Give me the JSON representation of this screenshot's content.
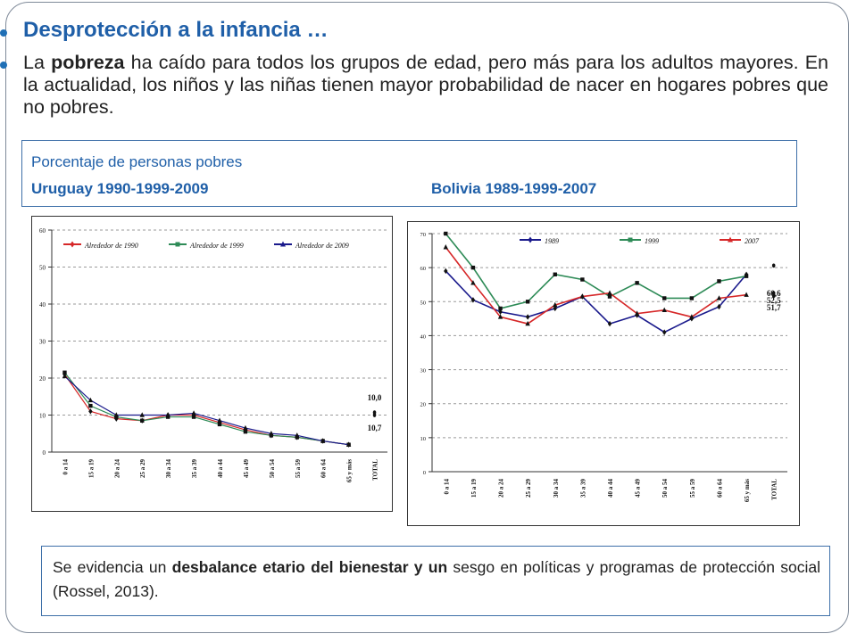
{
  "slide": {
    "title": "Desprotección a la infancia …",
    "body_prefix": "La ",
    "body_bold": "pobreza",
    "body_rest": " ha caído para todos los grupos de edad, pero más para los adultos mayores. En la actualidad, los niños y las niñas tienen mayor probabilidad de nacer en hogares pobres  que no pobres.",
    "caption_line1": "Porcentaje de personas pobres",
    "caption_uruguay": "Uruguay 1990-1999-2009",
    "caption_bolivia": "Bolivia 1989-1999-2007",
    "note_prefix": "Se evidencia un ",
    "note_bold": "desbalance etario del bienestar y un",
    "note_rest": " sesgo en políticas y programas de protección social (Rossel, 2013)."
  },
  "chart_data": [
    {
      "type": "line",
      "title": "Uruguay 1990-1999-2009",
      "categories": [
        "0 a 14",
        "15 a 19",
        "20 a 24",
        "25 a 29",
        "30 a 34",
        "35 a 39",
        "40 a 44",
        "45 a 49",
        "50 a 54",
        "55 a 59",
        "60 a 64",
        "65 y más",
        "TOTAL"
      ],
      "ylim": [
        0,
        60
      ],
      "yticks": [
        0,
        10,
        20,
        30,
        40,
        50,
        60
      ],
      "grid": true,
      "legend_position": "top",
      "series": [
        {
          "name": "Alrededor de 1990",
          "color": "#d62728",
          "marker": "diamond",
          "values": [
            21,
            11,
            9,
            8.5,
            10,
            10,
            8,
            6,
            4.5,
            4,
            3,
            2,
            null
          ]
        },
        {
          "name": "Alrededor de 1999",
          "color": "#2e8b57",
          "marker": "square",
          "values": [
            21.5,
            12.5,
            9.5,
            8.5,
            9.5,
            9.5,
            7.5,
            5.5,
            4.5,
            4,
            3,
            2,
            null
          ]
        },
        {
          "name": "Alrededor de 2009",
          "color": "#1a1a8c",
          "marker": "triangle",
          "values": [
            20.5,
            14,
            10,
            10,
            10,
            10.5,
            8.5,
            6.5,
            5,
            4.5,
            3,
            2,
            null
          ]
        }
      ],
      "total_labels": [
        "10,0",
        "10,7"
      ],
      "total_points": [
        10.0,
        10.7
      ]
    },
    {
      "type": "line",
      "title": "Bolivia 1989-1999-2007",
      "categories": [
        "0 a 14",
        "15 a 19",
        "20 a 24",
        "25 a 29",
        "30 a 34",
        "35 a 39",
        "40 a 44",
        "45 a 49",
        "50 a 54",
        "55 a 59",
        "60 a 64",
        "65 y más",
        "TOTAL"
      ],
      "ylim": [
        0,
        70
      ],
      "yticks": [
        0,
        10,
        20,
        30,
        40,
        50,
        60,
        70
      ],
      "grid": true,
      "legend_position": "top",
      "series": [
        {
          "name": "1989",
          "color": "#1a1a8c",
          "marker": "diamond",
          "values": [
            59,
            50.5,
            47,
            45.5,
            48,
            51.5,
            43.5,
            46,
            41,
            45,
            48.5,
            58,
            null
          ]
        },
        {
          "name": "1999",
          "color": "#2e8b57",
          "marker": "square",
          "values": [
            70,
            60,
            48,
            50,
            58,
            56.5,
            51.5,
            55.5,
            51,
            51,
            56,
            57.5,
            null
          ]
        },
        {
          "name": "2007",
          "color": "#d62728",
          "marker": "triangle",
          "values": [
            66,
            55.5,
            45.5,
            43.5,
            49,
            51.5,
            52.5,
            46.5,
            47.5,
            45.5,
            51,
            52,
            null
          ]
        }
      ],
      "total_labels": [
        "60,6",
        "52,5",
        "51,7"
      ],
      "total_points": [
        60.6,
        52.5,
        51.7
      ]
    }
  ]
}
